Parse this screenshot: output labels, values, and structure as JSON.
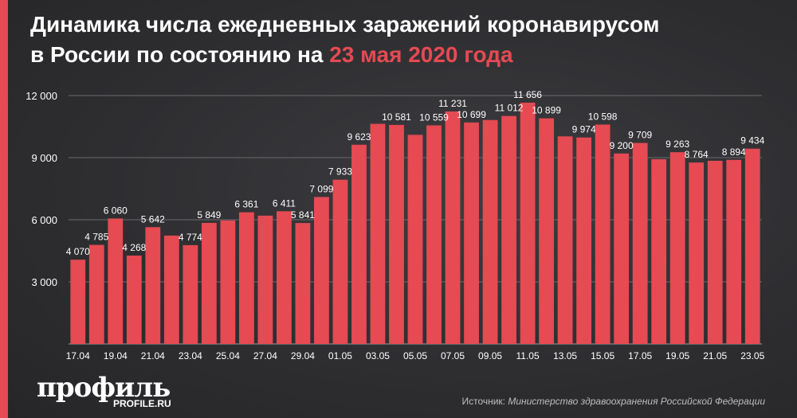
{
  "title": {
    "line1": "Динамика числа ежедневных заражений коронавирусом",
    "line2_prefix": "в России по состоянию на ",
    "line2_highlight": "23 мая 2020 года"
  },
  "colors": {
    "accent": "#e64a52",
    "background": "#2d2d30",
    "text": "#ffffff",
    "grid": "#6a6a6e",
    "source": "#bdbdbd"
  },
  "logo": {
    "name": "профиль",
    "site": "PROFILE.RU"
  },
  "source": {
    "label": "Источник:",
    "text": "Министерство здравоохранения Российской Федерации"
  },
  "chart_data": {
    "type": "bar",
    "title": "",
    "xlabel": "",
    "ylabel": "",
    "ylim": [
      0,
      12000
    ],
    "yticks": [
      3000,
      6000,
      9000,
      12000
    ],
    "ytick_labels": [
      "3 000",
      "6 000",
      "9 000",
      "12 000"
    ],
    "grid": true,
    "categories": [
      "17.04",
      "18.04",
      "19.04",
      "20.04",
      "21.04",
      "22.04",
      "23.04",
      "24.04",
      "25.04",
      "26.04",
      "27.04",
      "28.04",
      "29.04",
      "30.04",
      "01.05",
      "02.05",
      "03.05",
      "04.05",
      "05.05",
      "06.05",
      "07.05",
      "08.05",
      "09.05",
      "10.05",
      "11.05",
      "12.05",
      "13.05",
      "14.05",
      "15.05",
      "16.05",
      "17.05",
      "18.05",
      "19.05",
      "20.05",
      "21.05",
      "22.05",
      "23.05"
    ],
    "xtick_labels": [
      "17.04",
      "",
      "19.04",
      "",
      "21.04",
      "",
      "23.04",
      "",
      "25.04",
      "",
      "27.04",
      "",
      "29.04",
      "",
      "01.05",
      "",
      "03.05",
      "",
      "05.05",
      "",
      "07.05",
      "",
      "09.05",
      "",
      "11.05",
      "",
      "13.05",
      "",
      "15.05",
      "",
      "17.05",
      "",
      "19.05",
      "",
      "21.05",
      "",
      "23.05"
    ],
    "values": [
      4070,
      4785,
      6060,
      4268,
      5642,
      5236,
      4774,
      5849,
      5966,
      6361,
      6198,
      6411,
      5841,
      7099,
      7933,
      9623,
      10633,
      10581,
      10102,
      10559,
      11231,
      10699,
      10817,
      11012,
      11656,
      10899,
      10028,
      9974,
      10598,
      9200,
      9709,
      8926,
      9263,
      8764,
      8849,
      8894,
      9434
    ],
    "data_labels": [
      "4 070",
      "4 785",
      "6 060",
      "4 268",
      "5 642",
      "",
      "4 774",
      "5 849",
      "",
      "6 361",
      "",
      "6 411",
      "5 841",
      "7 099",
      "7 933",
      "9 623",
      "",
      "10 581",
      "",
      "10 559",
      "11 231",
      "10 699",
      "",
      "11 012",
      "11 656",
      "10 899",
      "",
      "9 974",
      "10 598",
      "9 200",
      "9 709",
      "",
      "9 263",
      "8 764",
      "",
      "8 894",
      "9 434"
    ]
  }
}
